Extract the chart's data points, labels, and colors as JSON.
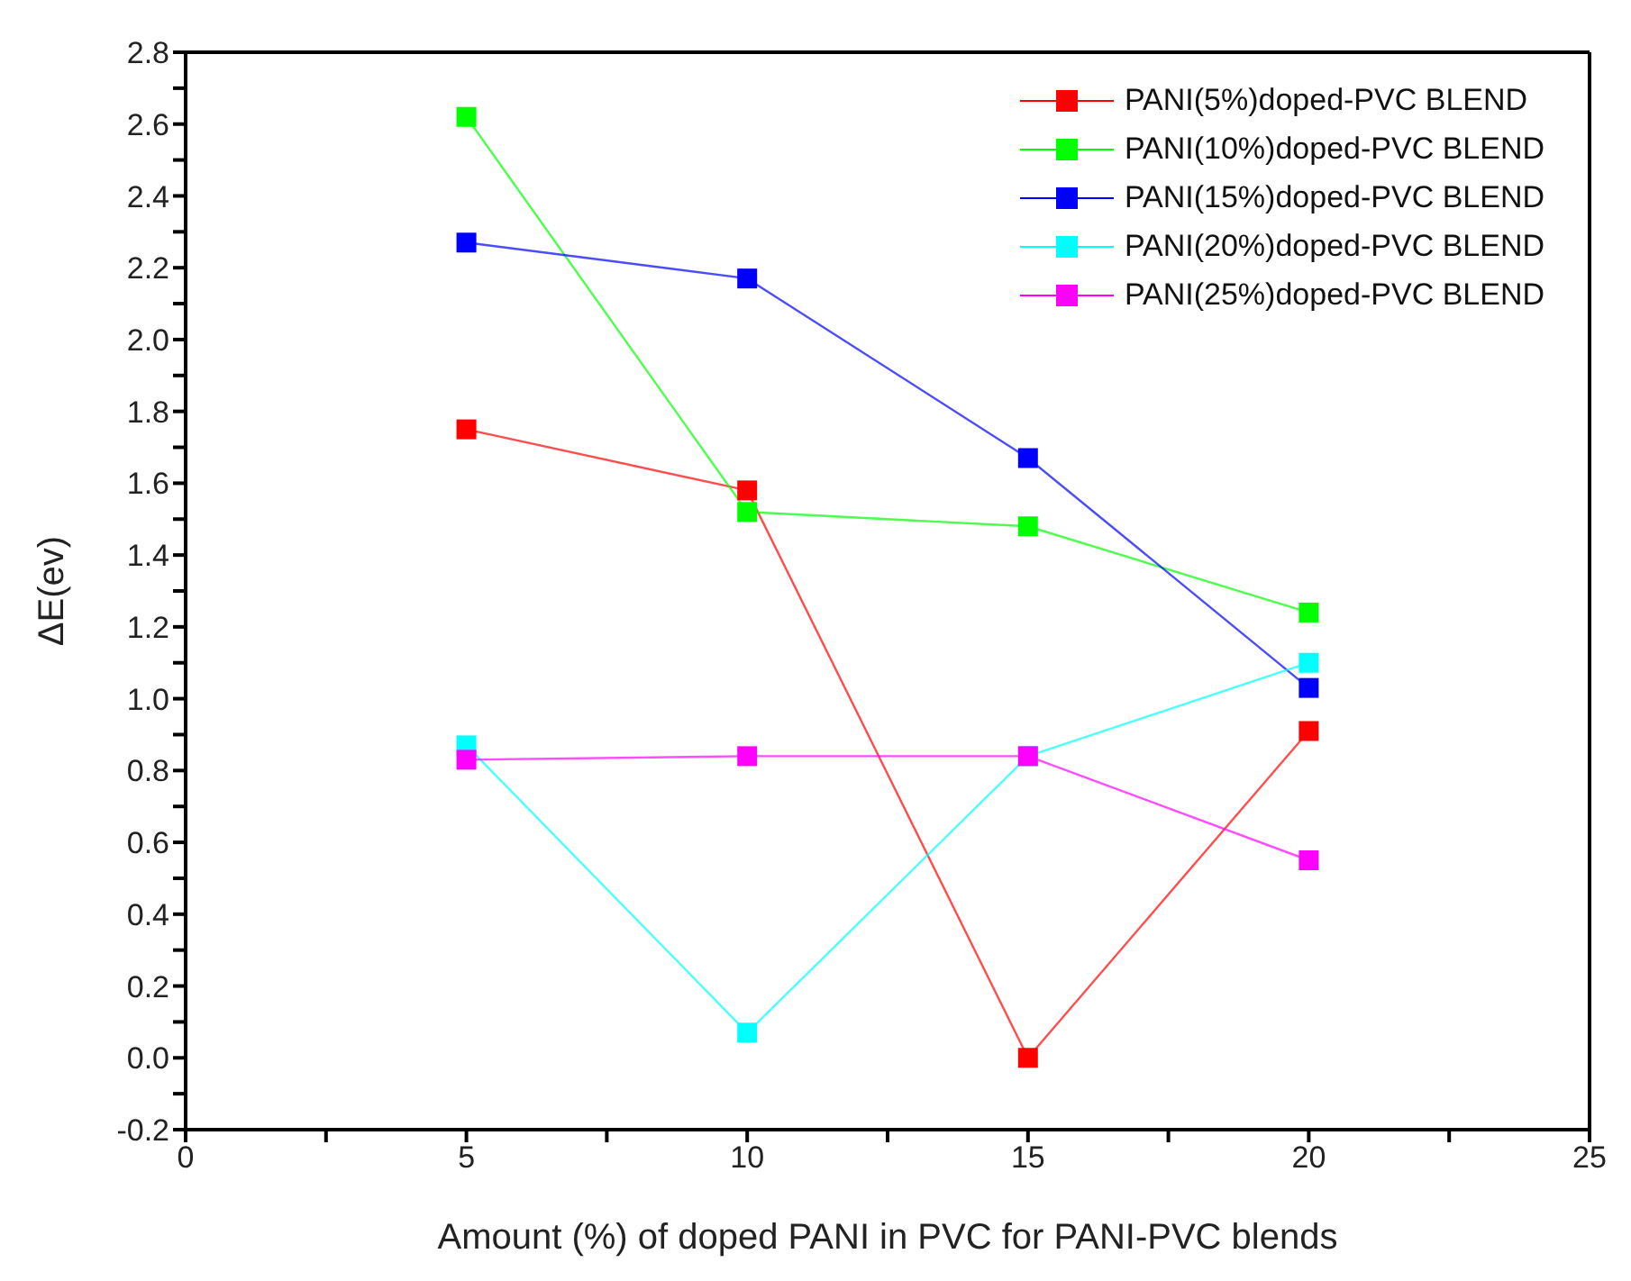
{
  "chart_data": {
    "type": "line",
    "xlabel": "Amount (%) of doped PANI in PVC for PANI-PVC blends",
    "ylabel": "ΔE(ev)",
    "x": [
      5,
      10,
      15,
      20
    ],
    "series": [
      {
        "name": "PANI(5%)doped-PVC BLEND",
        "color": "#ff0000",
        "values": [
          1.75,
          1.58,
          0.0,
          0.91
        ]
      },
      {
        "name": "PANI(10%)doped-PVC BLEND",
        "color": "#00ff00",
        "values": [
          2.62,
          1.52,
          1.48,
          1.24
        ]
      },
      {
        "name": "PANI(15%)doped-PVC BLEND",
        "color": "#0000ff",
        "values": [
          2.27,
          2.17,
          1.67,
          1.03
        ]
      },
      {
        "name": "PANI(20%)doped-PVC BLEND",
        "color": "#00ffff",
        "values": [
          0.87,
          0.07,
          0.84,
          1.1
        ]
      },
      {
        "name": "PANI(25%)doped-PVC BLEND",
        "color": "#ff00ff",
        "values": [
          0.83,
          0.84,
          0.84,
          0.55
        ]
      }
    ],
    "xlim": [
      0,
      25
    ],
    "xticks": [
      0,
      {
        "value": 2.5,
        "label": null
      },
      5,
      {
        "value": 7.5,
        "label": null
      },
      10,
      {
        "value": 12.5,
        "label": null
      },
      15,
      {
        "value": 17.5,
        "label": null
      },
      20,
      {
        "value": 22.5,
        "label": null
      },
      25
    ],
    "ylim": [
      -0.2,
      2.8
    ],
    "yticks": [
      -0.2,
      {
        "value": -0.1,
        "label": null
      },
      {
        "value": 0,
        "label": "0.0"
      },
      {
        "value": 0.1,
        "label": null
      },
      0.2,
      {
        "value": 0.3,
        "label": null
      },
      0.4,
      {
        "value": 0.5,
        "label": null
      },
      0.6,
      {
        "value": 0.7,
        "label": null
      },
      0.8,
      {
        "value": 0.9,
        "label": null
      },
      {
        "value": 1,
        "label": "1.0"
      },
      {
        "value": 1.1,
        "label": null
      },
      1.2,
      {
        "value": 1.3,
        "label": null
      },
      1.4,
      {
        "value": 1.5,
        "label": null
      },
      1.6,
      {
        "value": 1.7,
        "label": null
      },
      1.8,
      {
        "value": 1.9,
        "label": null
      },
      {
        "value": 2,
        "label": "2.0"
      },
      {
        "value": 2.1,
        "label": null
      },
      2.2,
      {
        "value": 2.3,
        "label": null
      },
      2.4,
      {
        "value": 2.5,
        "label": null
      },
      2.6,
      {
        "value": 2.7,
        "label": null
      },
      2.8
    ],
    "grid": false,
    "legend": "top right",
    "marker": "square",
    "line_style": "solid"
  }
}
